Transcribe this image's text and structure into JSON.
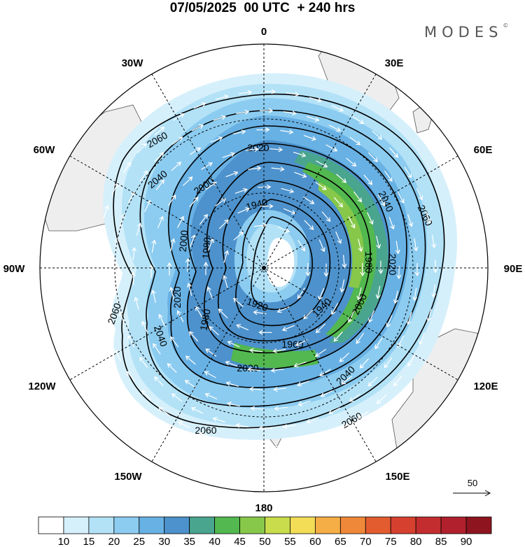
{
  "header": {
    "title": "07/05/2025  00 UTC  + 240 hrs",
    "logo_text": "MODES",
    "logo_mark": "©"
  },
  "map": {
    "projection": "polar-stereographic-south",
    "longitude_labels": {
      "top": "0",
      "top_right": "30E",
      "right_upper": "60E",
      "right": "90E",
      "right_lower": "120E",
      "bottom_right": "150E",
      "bottom": "180",
      "bottom_left": "150W",
      "left_lower": "120W",
      "left": "90W",
      "left_upper": "60W",
      "top_left": "30W"
    },
    "contour_labels": [
      "1920",
      "1940",
      "1960",
      "1980",
      "2000",
      "2020",
      "2040",
      "2060"
    ],
    "vector_reference": {
      "label": "50"
    },
    "colors": {
      "land": "#eeeeee",
      "coast": "#555555",
      "contour": "#000000",
      "vector": "#ffffff"
    }
  },
  "colorbar": {
    "ticks": [
      "10",
      "15",
      "20",
      "25",
      "30",
      "35",
      "40",
      "45",
      "50",
      "55",
      "60",
      "65",
      "70",
      "75",
      "80",
      "85",
      "90"
    ],
    "colors": [
      "#ffffff",
      "#d6f0fb",
      "#b3e2f7",
      "#8cccf0",
      "#68b1e4",
      "#4d92cc",
      "#4aa58f",
      "#52b84f",
      "#87c84a",
      "#c8dc4c",
      "#f3dc56",
      "#f5ae46",
      "#ef8838",
      "#e35c30",
      "#d6402f",
      "#c42d2f",
      "#b0212d",
      "#8e1520"
    ]
  }
}
